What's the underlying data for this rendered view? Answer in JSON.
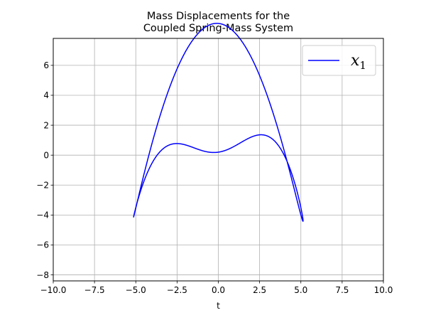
{
  "chart_data": {
    "type": "line",
    "title": [
      "Mass Displacements for the",
      "Coupled Spring-Mass System"
    ],
    "xlabel": "t",
    "ylabel": "",
    "xlim": [
      -10,
      10
    ],
    "ylim": [
      -8.4,
      7.8
    ],
    "xticks": [
      -10.0,
      -7.5,
      -5.0,
      -2.5,
      0.0,
      2.5,
      5.0,
      7.5,
      10.0
    ],
    "xtick_labels": [
      "−10.0",
      "−7.5",
      "−5.0",
      "−2.5",
      "0.0",
      "2.5",
      "5.0",
      "7.5",
      "10.0"
    ],
    "yticks": [
      -8,
      -6,
      -4,
      -2,
      0,
      2,
      4,
      6
    ],
    "ytick_labels": [
      "−8",
      "−6",
      "−4",
      "−2",
      "0",
      "2",
      "4",
      "6"
    ],
    "grid": true,
    "legend": {
      "position": "upper right",
      "entries": [
        "x1"
      ]
    },
    "series": [
      {
        "name": "x1",
        "color": "#0000ff",
        "param_eq": {
          "x_terms": [
            [
              0,
              5,
              1
            ],
            [
              0.6,
              4,
              2
            ]
          ],
          "y_terms": [
            [
              0.5,
              5,
              3
            ],
            [
              2.5,
              3,
              2
            ],
            [
              4,
              2,
              4
            ]
          ],
          "t_range": [
            0,
            6.2832
          ],
          "samples": 2400
        }
      }
    ]
  }
}
